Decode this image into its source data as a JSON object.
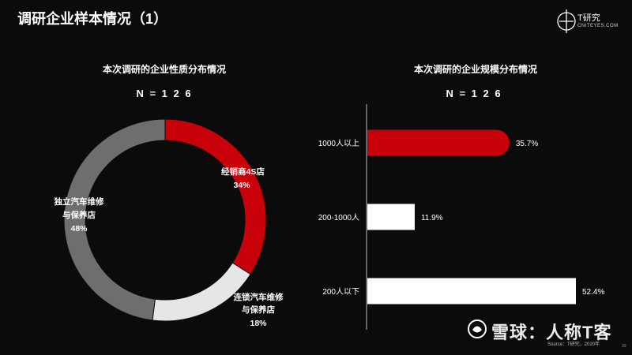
{
  "page": {
    "title": "调研企业样本情况（1）",
    "logo_text": "T研究",
    "logo_sub": "CNITEYES.COM",
    "source": "Source：T研究，2020年",
    "page_number": "39",
    "watermark": "雪球：人称T客"
  },
  "colors": {
    "red": "#c8000a",
    "gray": "#6e6e6e",
    "light": "#e6e6e6",
    "white": "#ffffff",
    "background": "#0b0b0b"
  },
  "chart_data": [
    {
      "type": "pie",
      "title": "本次调研的企业性质分布情况",
      "n_label": "N = 1 2 6",
      "slices": [
        {
          "label": "经销商4S店",
          "value": 34,
          "value_label": "34%",
          "color": "#c8000a"
        },
        {
          "label": "连锁汽车维修与保养店",
          "value": 18,
          "value_label": "18%",
          "color": "#e6e6e6"
        },
        {
          "label": "独立汽车维修与保养店",
          "value": 48,
          "value_label": "48%",
          "color": "#6e6e6e"
        }
      ]
    },
    {
      "type": "bar",
      "orientation": "horizontal",
      "title": "本次调研的企业规模分布情况",
      "n_label": "N = 1 2 6",
      "categories": [
        "1000人以上",
        "200-1000人",
        "200人以下"
      ],
      "values": [
        35.7,
        11.9,
        52.4
      ],
      "value_labels": [
        "35.7%",
        "11.9%",
        "52.4%"
      ],
      "colors": [
        "#c8000a",
        "#ffffff",
        "#ffffff"
      ],
      "xlim": [
        0,
        52.4
      ]
    }
  ]
}
